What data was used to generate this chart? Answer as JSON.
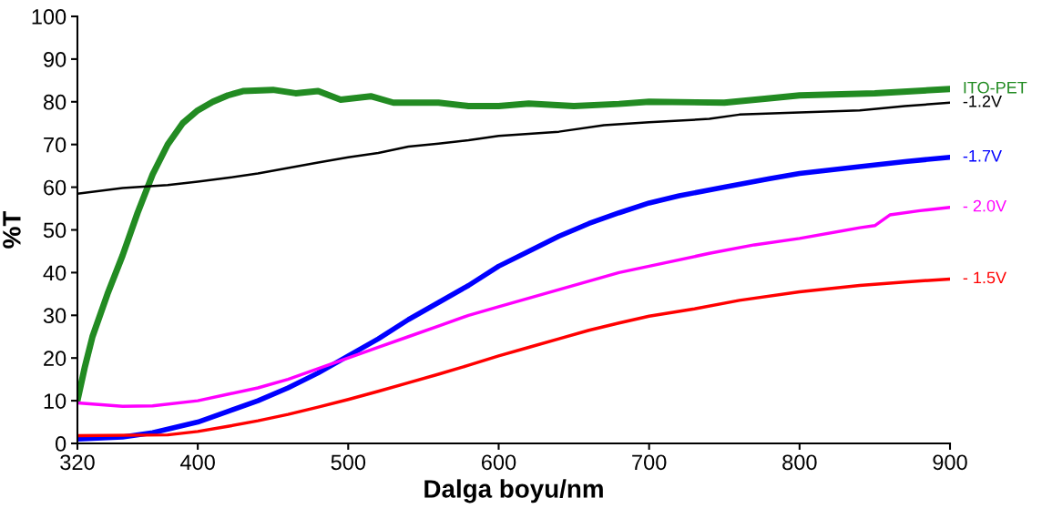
{
  "chart_data": {
    "type": "line",
    "xlabel": "Dalga boyu/nm",
    "ylabel": "%T",
    "xlim": [
      320,
      900
    ],
    "ylim": [
      0,
      100
    ],
    "xticks": [
      320,
      400,
      500,
      600,
      700,
      800,
      900
    ],
    "yticks": [
      0,
      10,
      20,
      30,
      40,
      50,
      60,
      70,
      80,
      90,
      100
    ],
    "grid": false,
    "legend": false,
    "marker": "none",
    "line_style": "solid",
    "series": [
      {
        "name": "ITO-PET",
        "color": "#228b22",
        "x": [
          320,
          325,
          330,
          340,
          350,
          360,
          370,
          380,
          390,
          400,
          410,
          420,
          430,
          450,
          465,
          480,
          495,
          515,
          530,
          560,
          580,
          600,
          620,
          650,
          680,
          700,
          750,
          780,
          800,
          850,
          900
        ],
        "values": [
          10,
          18,
          25,
          35,
          44,
          54,
          63,
          70,
          75,
          78,
          80,
          81.5,
          82.5,
          82.8,
          82,
          82.5,
          80.5,
          81.3,
          79.8,
          79.8,
          79,
          79,
          79.6,
          79,
          79.5,
          80,
          79.8,
          80.8,
          81.5,
          82,
          83
        ]
      },
      {
        "name": "-1.2V",
        "color": "#000000",
        "x": [
          320,
          350,
          380,
          400,
          420,
          440,
          460,
          480,
          500,
          520,
          540,
          560,
          580,
          600,
          640,
          670,
          700,
          740,
          760,
          800,
          840,
          870,
          900
        ],
        "values": [
          58.5,
          59.8,
          60.5,
          61.3,
          62.2,
          63.2,
          64.5,
          65.8,
          67,
          68,
          69.5,
          70.2,
          71,
          72,
          73,
          74.5,
          75.2,
          76,
          77,
          77.5,
          78,
          79,
          79.8
        ]
      },
      {
        "name": "-1.7V",
        "color": "#0000ff",
        "x": [
          320,
          350,
          370,
          400,
          420,
          440,
          460,
          480,
          500,
          520,
          540,
          560,
          580,
          600,
          620,
          640,
          660,
          680,
          700,
          720,
          750,
          780,
          800,
          840,
          870,
          900
        ],
        "values": [
          1,
          1.5,
          2.5,
          5,
          7.5,
          10,
          13,
          16.5,
          20.5,
          24.5,
          29,
          33,
          37,
          41.5,
          45,
          48.5,
          51.5,
          54,
          56.3,
          58,
          60,
          62,
          63.2,
          64.8,
          66,
          67
        ]
      },
      {
        "name": "- 2.0V",
        "color": "#ff00ff",
        "x": [
          320,
          350,
          370,
          400,
          420,
          440,
          460,
          480,
          500,
          520,
          540,
          560,
          580,
          600,
          640,
          680,
          700,
          740,
          770,
          800,
          840,
          850,
          860,
          880,
          900
        ],
        "values": [
          9.5,
          8.7,
          8.8,
          10,
          11.5,
          13,
          15,
          17.5,
          20,
          22.5,
          25,
          27.5,
          30,
          32,
          36,
          40,
          41.5,
          44.5,
          46.5,
          48,
          50.5,
          51,
          53.5,
          54.5,
          55.3
        ]
      },
      {
        "name": "- 1.5V",
        "color": "#ff0000",
        "x": [
          320,
          380,
          400,
          420,
          440,
          460,
          480,
          500,
          520,
          540,
          560,
          580,
          600,
          620,
          640,
          660,
          680,
          700,
          730,
          760,
          800,
          840,
          870,
          900
        ],
        "values": [
          1.8,
          2,
          2.8,
          4,
          5.3,
          6.8,
          8.5,
          10.3,
          12.2,
          14.2,
          16.2,
          18.3,
          20.5,
          22.5,
          24.5,
          26.5,
          28.2,
          29.8,
          31.5,
          33.5,
          35.5,
          37,
          37.8,
          38.5
        ]
      }
    ]
  }
}
